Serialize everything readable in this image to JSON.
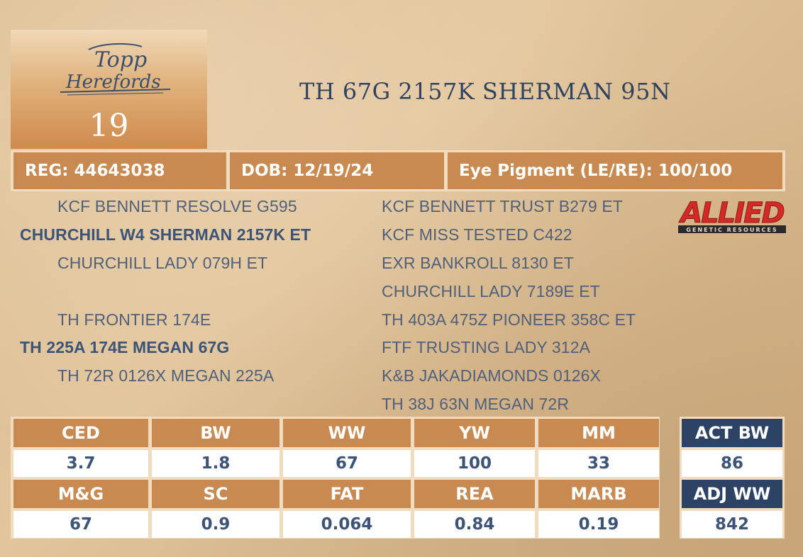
{
  "logo": {
    "text_line1": "Topp",
    "text_line2": "Herefords"
  },
  "lot_number": "19",
  "animal_name": "TH 67G 2157K SHERMAN 95N",
  "info": {
    "reg": "REG: 44643038",
    "dob": "DOB: 12/19/24",
    "eye": "Eye Pigment (LE/RE): 100/100"
  },
  "pedigree": {
    "sire_sire": "KCF BENNETT RESOLVE G595",
    "sire": "CHURCHILL W4 SHERMAN 2157K ET",
    "sire_dam": "CHURCHILL LADY 079H ET",
    "dam_sire": "TH FRONTIER 174E",
    "dam": "TH 225A 174E MEGAN 67G",
    "dam_dam": "TH 72R 0126X MEGAN 225A",
    "g1": "KCF BENNETT TRUST B279 ET",
    "g2": "KCF MISS TESTED C422",
    "g3": "EXR BANKROLL 8130 ET",
    "g4": "CHURCHILL LADY 7189E ET",
    "g5": "TH 403A 475Z PIONEER 358C ET",
    "g6": "FTF TRUSTING LADY 312A",
    "g7": "K&B JAKADIAMONDS 0126X",
    "g8": "TH 38J 63N MEGAN 72R"
  },
  "allied_logo": {
    "name": "ALLIED",
    "tagline": "GENETIC RESOURCES",
    "color": "#d42a25"
  },
  "epds": {
    "row1_headers": [
      "CED",
      "BW",
      "WW",
      "YW",
      "MM"
    ],
    "row1_values": [
      "3.7",
      "1.8",
      "67",
      "100",
      "33"
    ],
    "row2_headers": [
      "M&G",
      "SC",
      "FAT",
      "REA",
      "MARB"
    ],
    "row2_values": [
      "67",
      "0.9",
      "0.064",
      "0.84",
      "0.19"
    ]
  },
  "actuals": {
    "act_bw_label": "ACT BW",
    "act_bw_value": "86",
    "adj_ww_label": "ADJ WW",
    "adj_ww_value": "842"
  },
  "colors": {
    "header_tan": "#c98a52",
    "navy": "#2c4366",
    "pedigree_text": "#4f617a"
  }
}
